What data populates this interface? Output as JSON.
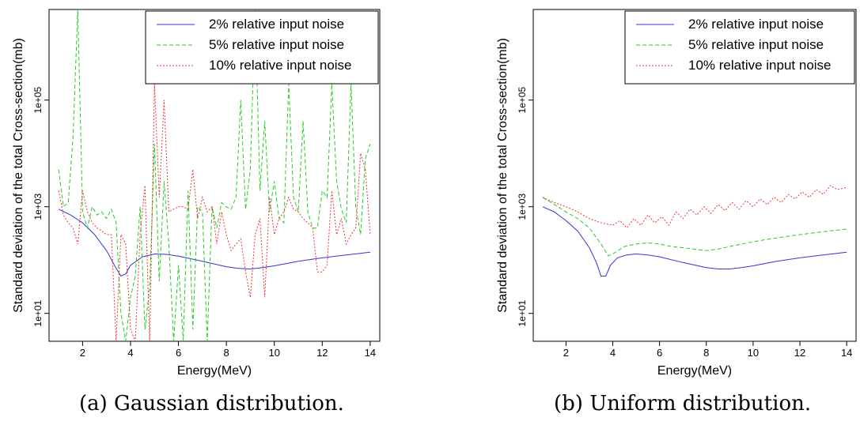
{
  "captions": {
    "a": "(a) Gaussian distribution.",
    "b": "(b) Uniform distribution."
  },
  "chart_data": [
    {
      "type": "line",
      "xlabel": "Energy(MeV)",
      "ylabel": "Standard deviation of the total Cross-section(mb)",
      "xlim": [
        0.6,
        14.4
      ],
      "ylim": [
        3,
        5000000
      ],
      "yscale": "log",
      "xticks": [
        2,
        4,
        6,
        8,
        10,
        12,
        14
      ],
      "yticks": [
        10,
        1000,
        100000
      ],
      "ytick_labels": [
        "1e+01",
        "1e+03",
        "1e+05"
      ],
      "grid": false,
      "legend": "top-right",
      "series": [
        {
          "name": "2% relative input noise",
          "color": "#3333dd",
          "dash": "solid",
          "x": [
            1,
            1.5,
            2,
            2.5,
            3,
            3.4,
            3.6,
            3.8,
            4.0,
            4.5,
            5.0,
            5.5,
            6,
            7,
            8,
            8.5,
            9,
            9.5,
            10,
            11,
            12,
            13,
            14
          ],
          "y": [
            900,
            700,
            500,
            300,
            150,
            70,
            50,
            55,
            80,
            115,
            130,
            128,
            118,
            95,
            75,
            70,
            68,
            72,
            78,
            95,
            110,
            125,
            140
          ]
        },
        {
          "name": "5% relative input noise",
          "color": "#22cc22",
          "dash": "5,3",
          "x": [
            1.0,
            1.2,
            1.4,
            1.6,
            1.8,
            2.0,
            2.2,
            2.4,
            2.6,
            2.8,
            3.0,
            3.2,
            3.4,
            3.6,
            3.8,
            4.0,
            4.2,
            4.4,
            4.6,
            4.8,
            5.0,
            5.2,
            5.4,
            5.6,
            5.8,
            6.0,
            6.2,
            6.4,
            6.6,
            6.8,
            7.0,
            7.2,
            7.4,
            7.6,
            7.8,
            8.0,
            8.2,
            8.4,
            8.6,
            8.8,
            9.0,
            9.2,
            9.4,
            9.6,
            9.8,
            10.0,
            10.2,
            10.4,
            10.6,
            10.8,
            11.0,
            11.2,
            11.4,
            11.6,
            11.8,
            12.0,
            12.2,
            12.4,
            12.6,
            12.8,
            13.0,
            13.2,
            13.4,
            13.6,
            13.8,
            14.0
          ],
          "y": [
            5000,
            1000,
            1200,
            20000,
            5000000,
            800,
            400,
            1000,
            700,
            800,
            600,
            900,
            500,
            10,
            3,
            20,
            50,
            1000,
            5,
            30,
            15000,
            40,
            3000,
            200,
            3,
            80,
            3,
            2000,
            5,
            1000,
            800,
            3,
            1000,
            400,
            1200,
            1000,
            900,
            1500,
            100000,
            900,
            5000,
            5000000,
            2000,
            40000,
            800,
            3000,
            600,
            500,
            200000,
            1500,
            800,
            40000,
            800,
            400,
            400,
            2000,
            1500,
            200000,
            3000,
            900,
            500,
            200000,
            1000,
            300,
            8000,
            15000
          ]
        },
        {
          "name": "10% relative input noise",
          "color": "#ee3333",
          "dash": "2,2",
          "x": [
            1.0,
            1.2,
            1.4,
            1.6,
            1.8,
            2.0,
            2.2,
            2.4,
            2.6,
            2.8,
            3.0,
            3.2,
            3.4,
            3.6,
            3.8,
            4.0,
            4.2,
            4.4,
            4.6,
            4.8,
            5.0,
            5.2,
            5.4,
            5.6,
            5.8,
            6.0,
            6.2,
            6.4,
            6.6,
            6.8,
            7.0,
            7.2,
            7.4,
            7.6,
            7.8,
            8.0,
            8.2,
            8.4,
            8.6,
            8.8,
            9.0,
            9.2,
            9.4,
            9.6,
            9.8,
            10.0,
            10.2,
            10.4,
            10.6,
            10.8,
            11.0,
            11.2,
            11.4,
            11.6,
            11.8,
            12.0,
            12.2,
            12.4,
            12.6,
            12.8,
            13.0,
            13.2,
            13.4,
            13.6,
            13.8,
            14.0
          ],
          "y": [
            2000,
            700,
            500,
            400,
            200,
            2000,
            800,
            500,
            400,
            350,
            300,
            300,
            3,
            300,
            200,
            5,
            3,
            300,
            2500,
            3,
            200000,
            1500,
            100000,
            800,
            900,
            1000,
            1000,
            900,
            5000,
            600,
            1500,
            800,
            1000,
            200,
            800,
            300,
            150,
            200,
            250,
            60,
            20,
            300,
            600,
            20,
            1500,
            300,
            600,
            800,
            1500,
            900,
            800,
            600,
            500,
            400,
            60,
            60,
            80,
            2000,
            300,
            600,
            200,
            300,
            400,
            10000,
            5000,
            300
          ]
        }
      ]
    },
    {
      "type": "line",
      "xlabel": "Energy(MeV)",
      "ylabel": "Standard deviation of the total Cross-section(mb)",
      "xlim": [
        0.6,
        14.4
      ],
      "ylim": [
        3,
        5000000
      ],
      "yscale": "log",
      "xticks": [
        2,
        4,
        6,
        8,
        10,
        12,
        14
      ],
      "yticks": [
        10,
        1000,
        100000
      ],
      "ytick_labels": [
        "1e+01",
        "1e+03",
        "1e+05"
      ],
      "grid": false,
      "legend": "top-right",
      "series": [
        {
          "name": "2% relative input noise",
          "color": "#3333dd",
          "dash": "solid",
          "x": [
            1,
            1.5,
            2,
            2.5,
            3,
            3.3,
            3.5,
            3.7,
            3.9,
            4.2,
            4.6,
            5.0,
            5.5,
            6,
            7,
            8,
            8.5,
            9,
            9.5,
            10,
            11,
            12,
            13,
            14
          ],
          "y": [
            1000,
            800,
            550,
            350,
            170,
            90,
            50,
            50,
            80,
            110,
            125,
            130,
            125,
            115,
            90,
            72,
            68,
            68,
            72,
            78,
            95,
            110,
            125,
            140
          ]
        },
        {
          "name": "5% relative input noise",
          "color": "#22cc22",
          "dash": "5,3",
          "x": [
            1,
            1.5,
            2,
            2.5,
            3,
            3.5,
            3.8,
            4.0,
            4.5,
            5.0,
            5.5,
            6.0,
            6.5,
            7.0,
            7.5,
            8.0,
            8.5,
            9.0,
            9.5,
            10.0,
            10.5,
            11.0,
            11.5,
            12.0,
            12.5,
            13.0,
            13.5,
            14.0
          ],
          "y": [
            1500,
            1100,
            800,
            600,
            400,
            200,
            120,
            130,
            180,
            200,
            210,
            200,
            180,
            170,
            160,
            150,
            160,
            180,
            200,
            220,
            240,
            260,
            280,
            300,
            320,
            340,
            360,
            380
          ]
        },
        {
          "name": "10% relative input noise",
          "color": "#ee3333",
          "dash": "2,2",
          "x": [
            1.0,
            1.5,
            2.0,
            2.5,
            3.0,
            3.5,
            4.0,
            4.3,
            4.6,
            4.9,
            5.2,
            5.5,
            5.8,
            6.1,
            6.4,
            6.7,
            7.0,
            7.3,
            7.6,
            7.9,
            8.2,
            8.5,
            8.8,
            9.1,
            9.4,
            9.7,
            10.0,
            10.3,
            10.6,
            10.9,
            11.2,
            11.5,
            11.8,
            12.1,
            12.4,
            12.7,
            13.0,
            13.3,
            13.6,
            14.0
          ],
          "y": [
            1500,
            1200,
            1000,
            800,
            600,
            500,
            450,
            550,
            400,
            600,
            450,
            700,
            500,
            650,
            450,
            800,
            600,
            900,
            700,
            1000,
            750,
            1100,
            850,
            1200,
            900,
            1300,
            1000,
            1400,
            1100,
            1500,
            1200,
            1700,
            1400,
            1900,
            1500,
            2100,
            1700,
            2500,
            2100,
            2300
          ]
        }
      ]
    }
  ]
}
